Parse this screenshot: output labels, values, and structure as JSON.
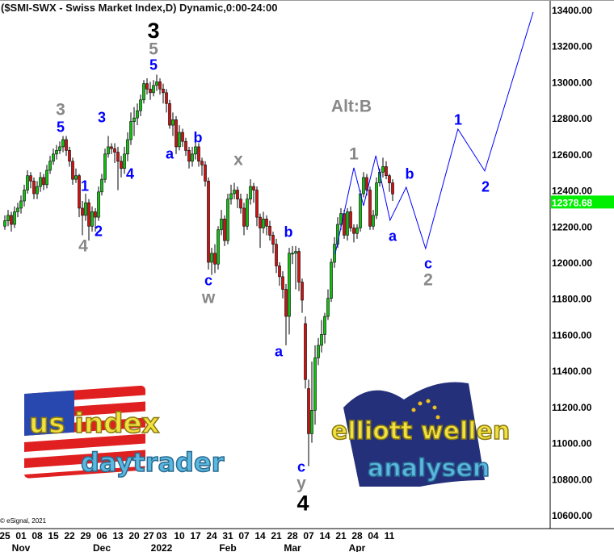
{
  "header": {
    "title": "($SMI-SWX - Swiss Market Index,D) Dynamic,0:00-24:00",
    "credit": "© eSignal, 2021"
  },
  "colors": {
    "up": "#10c010",
    "down": "#d01010",
    "projection": "#0000ff",
    "wave_blue": "#0000ff",
    "wave_gray": "#888888",
    "wave_black": "#000000",
    "last_price_bg": "#00ee00"
  },
  "logos": {
    "left": {
      "line1": "us index",
      "line2": "daytrader"
    },
    "right": {
      "line1": "elliott wellen",
      "line2": "analysen"
    }
  },
  "chart_data": {
    "type": "candlestick",
    "title": "($SMI-SWX - Swiss Market Index,D) Dynamic,0:00-24:00",
    "ylim": [
      10600,
      13400
    ],
    "y_ticks": [
      "13400.00",
      "13200.00",
      "13000.00",
      "12800.00",
      "12600.00",
      "12400.00",
      "12200.00",
      "12000.00",
      "11800.00",
      "11600.00",
      "11400.00",
      "11200.00",
      "11000.00",
      "10800.00",
      "10600.00"
    ],
    "y_tick_values": [
      13400,
      13200,
      13000,
      12800,
      12600,
      12400,
      12200,
      12000,
      11800,
      11600,
      11400,
      11200,
      11000,
      10800,
      10600
    ],
    "last_price": "12378.68",
    "last_price_value": 12378.68,
    "x_ticks": [
      {
        "bar": 0,
        "day": "25",
        "month": ""
      },
      {
        "bar": 5,
        "day": "01",
        "month": "Nov"
      },
      {
        "bar": 10,
        "day": "08",
        "month": ""
      },
      {
        "bar": 15,
        "day": "15",
        "month": ""
      },
      {
        "bar": 20,
        "day": "22",
        "month": ""
      },
      {
        "bar": 25,
        "day": "29",
        "month": ""
      },
      {
        "bar": 30,
        "day": "06",
        "month": "Dec"
      },
      {
        "bar": 35,
        "day": "13",
        "month": ""
      },
      {
        "bar": 40,
        "day": "20",
        "month": ""
      },
      {
        "bar": 44.5,
        "day": "27",
        "month": ""
      },
      {
        "bar": 48.5,
        "day": "03",
        "month": "2022"
      },
      {
        "bar": 54,
        "day": "10",
        "month": ""
      },
      {
        "bar": 59,
        "day": "17",
        "month": ""
      },
      {
        "bar": 64,
        "day": "24",
        "month": ""
      },
      {
        "bar": 69,
        "day": "31",
        "month": "Feb"
      },
      {
        "bar": 74,
        "day": "07",
        "month": ""
      },
      {
        "bar": 79,
        "day": "14",
        "month": ""
      },
      {
        "bar": 84,
        "day": "21",
        "month": ""
      },
      {
        "bar": 89,
        "day": "28",
        "month": "Mar"
      },
      {
        "bar": 94,
        "day": "07",
        "month": ""
      },
      {
        "bar": 99,
        "day": "14",
        "month": ""
      },
      {
        "bar": 104,
        "day": "21",
        "month": ""
      },
      {
        "bar": 109,
        "day": "28",
        "month": "Apr"
      },
      {
        "bar": 114,
        "day": "04",
        "month": ""
      },
      {
        "bar": 119,
        "day": "11",
        "month": ""
      }
    ],
    "candles_ohlc": [
      [
        12200,
        12260,
        12180,
        12230
      ],
      [
        12230,
        12290,
        12200,
        12260
      ],
      [
        12260,
        12280,
        12170,
        12210
      ],
      [
        12210,
        12310,
        12190,
        12280
      ],
      [
        12280,
        12330,
        12250,
        12300
      ],
      [
        12300,
        12370,
        12270,
        12340
      ],
      [
        12340,
        12430,
        12310,
        12400
      ],
      [
        12400,
        12510,
        12380,
        12480
      ],
      [
        12480,
        12500,
        12410,
        12450
      ],
      [
        12450,
        12470,
        12350,
        12380
      ],
      [
        12380,
        12450,
        12350,
        12420
      ],
      [
        12420,
        12500,
        12390,
        12470
      ],
      [
        12470,
        12490,
        12400,
        12430
      ],
      [
        12430,
        12540,
        12410,
        12510
      ],
      [
        12510,
        12590,
        12490,
        12560
      ],
      [
        12560,
        12630,
        12540,
        12600
      ],
      [
        12600,
        12650,
        12570,
        12620
      ],
      [
        12620,
        12670,
        12600,
        12640
      ],
      [
        12640,
        12700,
        12610,
        12680
      ],
      [
        12680,
        12700,
        12590,
        12620
      ],
      [
        12620,
        12640,
        12530,
        12560
      ],
      [
        12560,
        12580,
        12430,
        12460
      ],
      [
        12460,
        12520,
        12440,
        12480
      ],
      [
        12480,
        12490,
        12250,
        12300
      ],
      [
        12300,
        12340,
        12150,
        12260
      ],
      [
        12260,
        12380,
        12230,
        12330
      ],
      [
        12330,
        12350,
        12120,
        12200
      ],
      [
        12200,
        12310,
        12170,
        12280
      ],
      [
        12280,
        12300,
        12170,
        12250
      ],
      [
        12250,
        12420,
        12230,
        12390
      ],
      [
        12390,
        12490,
        12370,
        12460
      ],
      [
        12460,
        12630,
        12440,
        12600
      ],
      [
        12600,
        12700,
        12580,
        12640
      ],
      [
        12640,
        12660,
        12600,
        12630
      ],
      [
        12630,
        12660,
        12550,
        12610
      ],
      [
        12610,
        12640,
        12400,
        12560
      ],
      [
        12560,
        12590,
        12470,
        12520
      ],
      [
        12520,
        12640,
        12490,
        12600
      ],
      [
        12600,
        12720,
        12560,
        12680
      ],
      [
        12680,
        12830,
        12650,
        12780
      ],
      [
        12780,
        12860,
        12700,
        12800
      ],
      [
        12800,
        12880,
        12760,
        12840
      ],
      [
        12840,
        12930,
        12810,
        12900
      ],
      [
        12900,
        13010,
        12880,
        12990
      ],
      [
        12990,
        13020,
        12930,
        12960
      ],
      [
        12960,
        13000,
        12900,
        12940
      ],
      [
        12940,
        13010,
        12920,
        12980
      ],
      [
        12980,
        13040,
        12950,
        13000
      ],
      [
        13000,
        13020,
        12930,
        12960
      ],
      [
        12960,
        12990,
        12880,
        12940
      ],
      [
        12940,
        12960,
        12830,
        12880
      ],
      [
        12880,
        12900,
        12740,
        12760
      ],
      [
        12760,
        12830,
        12700,
        12790
      ],
      [
        12790,
        12810,
        12600,
        12640
      ],
      [
        12640,
        12760,
        12620,
        12720
      ],
      [
        12720,
        12740,
        12640,
        12670
      ],
      [
        12670,
        12690,
        12590,
        12620
      ],
      [
        12620,
        12640,
        12520,
        12560
      ],
      [
        12560,
        12640,
        12530,
        12600
      ],
      [
        12600,
        12670,
        12570,
        12640
      ],
      [
        12640,
        12660,
        12530,
        12560
      ],
      [
        12560,
        12580,
        12480,
        12540
      ],
      [
        12540,
        12560,
        12420,
        12450
      ],
      [
        12450,
        12470,
        11960,
        12000
      ],
      [
        12000,
        12080,
        11930,
        12050
      ],
      [
        12050,
        12100,
        11940,
        11990
      ],
      [
        11990,
        12200,
        11960,
        12180
      ],
      [
        12180,
        12290,
        12150,
        12240
      ],
      [
        12240,
        12260,
        12090,
        12120
      ],
      [
        12120,
        12380,
        12100,
        12350
      ],
      [
        12350,
        12430,
        12320,
        12380
      ],
      [
        12380,
        12440,
        12350,
        12400
      ],
      [
        12400,
        12420,
        12300,
        12350
      ],
      [
        12350,
        12380,
        12270,
        12300
      ],
      [
        12300,
        12330,
        12150,
        12200
      ],
      [
        12200,
        12380,
        12180,
        12350
      ],
      [
        12350,
        12460,
        12320,
        12420
      ],
      [
        12420,
        12440,
        12330,
        12400
      ],
      [
        12400,
        12420,
        12200,
        12250
      ],
      [
        12250,
        12270,
        12080,
        12190
      ],
      [
        12190,
        12280,
        12160,
        12240
      ],
      [
        12240,
        12260,
        12150,
        12200
      ],
      [
        12200,
        12230,
        12120,
        12150
      ],
      [
        12150,
        12170,
        12050,
        12100
      ],
      [
        12100,
        12130,
        11940,
        11980
      ],
      [
        11980,
        12000,
        11870,
        11920
      ],
      [
        11920,
        11950,
        11800,
        11850
      ],
      [
        11850,
        11880,
        11540,
        11700
      ],
      [
        11700,
        12080,
        11600,
        12050
      ],
      [
        12050,
        12090,
        11990,
        12050
      ],
      [
        12050,
        12090,
        11850,
        12060
      ],
      [
        12060,
        12080,
        11840,
        11890
      ],
      [
        11890,
        11910,
        11720,
        11790
      ],
      [
        11660,
        11700,
        11300,
        11350
      ],
      [
        11300,
        11350,
        10870,
        11050
      ],
      [
        11050,
        11450,
        11000,
        11180
      ],
      [
        11180,
        11540,
        11100,
        11470
      ],
      [
        11470,
        11580,
        11430,
        11540
      ],
      [
        11540,
        11680,
        11500,
        11600
      ],
      [
        11600,
        11720,
        11550,
        11700
      ],
      [
        11700,
        11850,
        11680,
        11800
      ],
      [
        11800,
        12020,
        11780,
        12000
      ],
      [
        12000,
        12140,
        11970,
        12100
      ],
      [
        12100,
        12250,
        12080,
        12210
      ],
      [
        12210,
        12300,
        12180,
        12270
      ],
      [
        12270,
        12290,
        12130,
        12150
      ],
      [
        12150,
        12300,
        12120,
        12280
      ],
      [
        12280,
        12310,
        12170,
        12190
      ],
      [
        12190,
        12210,
        12110,
        12160
      ],
      [
        12160,
        12210,
        12130,
        12190
      ],
      [
        12190,
        12400,
        12170,
        12380
      ],
      [
        12380,
        12500,
        12360,
        12470
      ],
      [
        12470,
        12490,
        12370,
        12400
      ],
      [
        12400,
        12420,
        12180,
        12200
      ],
      [
        12200,
        12290,
        12180,
        12260
      ],
      [
        12260,
        12470,
        12240,
        12440
      ],
      [
        12440,
        12520,
        12420,
        12500
      ],
      [
        12500,
        12580,
        12470,
        12530
      ],
      [
        12530,
        12560,
        12460,
        12480
      ],
      [
        12480,
        12490,
        12390,
        12440
      ],
      [
        12440,
        12460,
        12340,
        12378.68
      ]
    ],
    "projection": [
      {
        "bar": 102.2,
        "price": 12045
      },
      {
        "bar": 108,
        "price": 12524
      },
      {
        "bar": 111,
        "price": 12313
      },
      {
        "bar": 114.8,
        "price": 12591
      },
      {
        "bar": 119.2,
        "price": 12233
      },
      {
        "bar": 124.2,
        "price": 12416
      },
      {
        "bar": 130.2,
        "price": 12076
      },
      {
        "bar": 140.2,
        "price": 12738
      },
      {
        "bar": 148.5,
        "price": 12506
      },
      {
        "bar": 163.5,
        "price": 13387
      }
    ],
    "annotations": [
      {
        "text": "3",
        "bar": 46,
        "price": 13288,
        "color": "black",
        "size": "xl"
      },
      {
        "text": "5",
        "bar": 46,
        "price": 13185,
        "color": "gray",
        "size": "l"
      },
      {
        "text": "5",
        "bar": 46,
        "price": 13096,
        "color": "blue",
        "size": "m"
      },
      {
        "text": "3",
        "bar": 17.25,
        "price": 12850,
        "color": "gray",
        "size": "l"
      },
      {
        "text": "5",
        "bar": 17.25,
        "price": 12752,
        "color": "blue",
        "size": "m"
      },
      {
        "text": "1",
        "bar": 24.75,
        "price": 12425,
        "color": "blue",
        "size": "m"
      },
      {
        "text": "2",
        "bar": 29,
        "price": 12175,
        "color": "blue",
        "size": "m"
      },
      {
        "text": "4",
        "bar": 24.25,
        "price": 12094,
        "color": "gray",
        "size": "l"
      },
      {
        "text": "3",
        "bar": 30,
        "price": 12805,
        "color": "blue",
        "size": "m"
      },
      {
        "text": "4",
        "bar": 38.75,
        "price": 12492,
        "color": "blue",
        "size": "m"
      },
      {
        "text": "a",
        "bar": 51,
        "price": 12604,
        "color": "blue",
        "size": "m"
      },
      {
        "text": "b",
        "bar": 59.75,
        "price": 12693,
        "color": "blue",
        "size": "m"
      },
      {
        "text": "c",
        "bar": 63,
        "price": 11902,
        "color": "blue",
        "size": "m"
      },
      {
        "text": "w",
        "bar": 63,
        "price": 11808,
        "color": "gray",
        "size": "l"
      },
      {
        "text": "x",
        "bar": 72.25,
        "price": 12573,
        "color": "gray",
        "size": "l"
      },
      {
        "text": "a",
        "bar": 84.75,
        "price": 11508,
        "color": "blue",
        "size": "m"
      },
      {
        "text": "b",
        "bar": 87.75,
        "price": 12170,
        "color": "blue",
        "size": "m"
      },
      {
        "text": "c",
        "bar": 91.75,
        "price": 10869,
        "color": "blue",
        "size": "m"
      },
      {
        "text": "y",
        "bar": 91.75,
        "price": 10779,
        "color": "gray",
        "size": "l"
      },
      {
        "text": "4",
        "bar": 92.25,
        "price": 10668,
        "color": "black",
        "size": "xl"
      },
      {
        "text": "Alt:B",
        "bar": 107.25,
        "price": 12868,
        "color": "gray",
        "size": "l"
      },
      {
        "text": "1",
        "bar": 108,
        "price": 12604,
        "color": "gray",
        "size": "l"
      },
      {
        "text": "a",
        "bar": 120,
        "price": 12148,
        "color": "blue",
        "size": "m"
      },
      {
        "text": "b",
        "bar": 125.25,
        "price": 12493,
        "color": "blue",
        "size": "m"
      },
      {
        "text": "c",
        "bar": 131,
        "price": 11996,
        "color": "blue",
        "size": "m"
      },
      {
        "text": "2",
        "bar": 131,
        "price": 11906,
        "color": "gray",
        "size": "l"
      },
      {
        "text": "1",
        "bar": 140.25,
        "price": 12792,
        "color": "blue",
        "size": "m"
      },
      {
        "text": "2",
        "bar": 148.75,
        "price": 12421,
        "color": "blue",
        "size": "m"
      }
    ]
  }
}
